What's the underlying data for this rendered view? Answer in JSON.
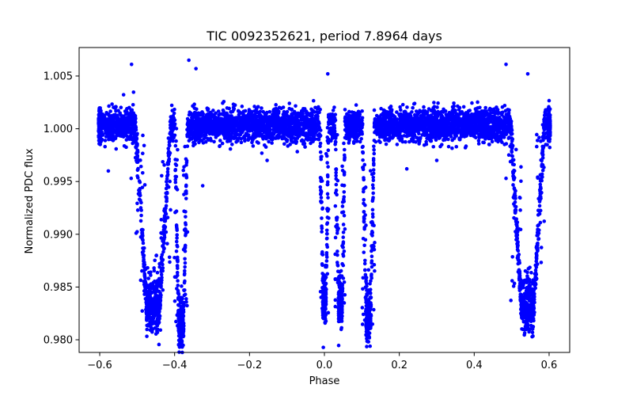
{
  "chart_data": {
    "type": "scatter",
    "title": "TIC 0092352621, period 7.8964 days",
    "xlabel": "Phase",
    "ylabel": "Normalized PDC flux",
    "xlim": [
      -0.655,
      0.655
    ],
    "ylim": [
      0.9788,
      1.0077
    ],
    "xticks": [
      -0.6,
      -0.4,
      -0.2,
      0.0,
      0.2,
      0.4,
      0.6
    ],
    "xtick_labels": [
      "−0.6",
      "−0.4",
      "−0.2",
      "0.0",
      "0.2",
      "0.4",
      "0.6"
    ],
    "yticks": [
      0.98,
      0.985,
      0.99,
      0.995,
      1.0,
      1.005
    ],
    "ytick_labels": [
      "0.980",
      "0.985",
      "0.990",
      "0.995",
      "1.000",
      "1.005"
    ],
    "grid": false,
    "marker_color": "#0000ff",
    "series": [
      {
        "phase_range": [
          -0.6,
          0.6
        ],
        "baseline_flux": 1.0003,
        "baseline_scatter": 0.0014,
        "transits": [
          {
            "center": -0.4576,
            "half_width": 0.047,
            "depth_flux": 0.9825
          },
          {
            "center": -0.3827,
            "half_width": 0.017,
            "depth_flux": 0.9803
          },
          {
            "center": 0.0,
            "half_width": 0.011,
            "depth_flux": 0.9825
          },
          {
            "center": 0.0424,
            "half_width": 0.013,
            "depth_flux": 0.9825
          },
          {
            "center": 0.1173,
            "half_width": 0.016,
            "depth_flux": 0.981
          },
          {
            "center": 0.5424,
            "half_width": 0.045,
            "depth_flux": 0.9825
          }
        ],
        "outliers": [
          {
            "x": -0.515,
            "y": 1.0061
          },
          {
            "x": -0.362,
            "y": 1.0065
          },
          {
            "x": 0.009,
            "y": 1.0052
          },
          {
            "x": 0.485,
            "y": 1.0061
          },
          {
            "x": -0.343,
            "y": 1.0057
          },
          {
            "x": 0.543,
            "y": 1.0052
          },
          {
            "x": -0.516,
            "y": 0.9953
          },
          {
            "x": 0.485,
            "y": 0.9953
          },
          {
            "x": -0.577,
            "y": 0.996
          },
          {
            "x": -0.325,
            "y": 0.9946
          },
          {
            "x": -0.153,
            "y": 0.997
          },
          {
            "x": 0.22,
            "y": 0.9962
          },
          {
            "x": 0.3,
            "y": 0.997
          }
        ]
      }
    ]
  }
}
